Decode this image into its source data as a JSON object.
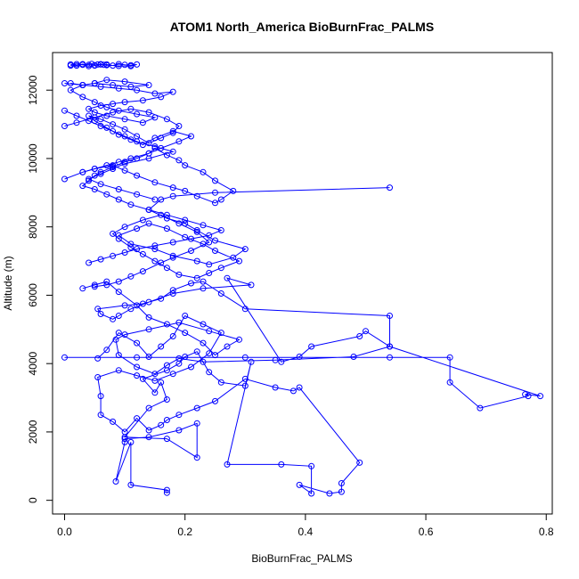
{
  "chart_data": {
    "type": "line",
    "title": "ATOM1 North_America BioBurnFrac_PALMS",
    "xlabel": "BioBurnFrac_PALMS",
    "ylabel": "Altitude (m)",
    "xlim": [
      -0.02,
      0.81
    ],
    "ylim": [
      -400,
      13100
    ],
    "xticks": [
      0.0,
      0.2,
      0.4,
      0.6,
      0.8
    ],
    "xtick_labels": [
      "0.0",
      "0.2",
      "0.4",
      "0.6",
      "0.8"
    ],
    "yticks": [
      0,
      2000,
      4000,
      6000,
      8000,
      10000,
      12000
    ],
    "ytick_labels": [
      "0",
      "2000",
      "4000",
      "6000",
      "8000",
      "10000",
      "12000"
    ],
    "grid": false,
    "marker": "open-circle",
    "color": "#0000ff",
    "series": [
      {
        "x": [
          0.17,
          0.17,
          0.11,
          0.11,
          0.085,
          0.1,
          0.1,
          0.14,
          0.19,
          0.22,
          0.22,
          0.17,
          0.1,
          0.14,
          0.17,
          0.16,
          0.15,
          0.13,
          0.17,
          0.19,
          0.2,
          0.22,
          0.24,
          0.26,
          0.3,
          0.31,
          0.27,
          0.36,
          0.41,
          0.41,
          0.39,
          0.44,
          0.46,
          0.46,
          0.49,
          0.39,
          0.38,
          0.35,
          0.3,
          0.25,
          0.22,
          0.19,
          0.17,
          0.16,
          0.14,
          0.12,
          0.1,
          0.08,
          0.06,
          0.06,
          0.055,
          0.09,
          0.12,
          0.15,
          0.18,
          0.21,
          0.24,
          0.26,
          0.23,
          0.2,
          0.18,
          0.16,
          0.14,
          0.12,
          0.09,
          0.07,
          0.055
        ],
        "y": [
          220,
          300,
          450,
          1700,
          550,
          1700,
          1800,
          1850,
          2050,
          2250,
          1250,
          1800,
          1850,
          2700,
          2950,
          3450,
          3150,
          3550,
          3800,
          4000,
          4200,
          4350,
          3750,
          3450,
          3350,
          4050,
          1050,
          1050,
          1000,
          200,
          450,
          200,
          250,
          500,
          1100,
          3300,
          3200,
          3300,
          3550,
          2900,
          2700,
          2500,
          2350,
          2200,
          2050,
          2400,
          2000,
          2300,
          2500,
          3050,
          3600,
          3800,
          3650,
          3500,
          3700,
          3900,
          4300,
          4900,
          5150,
          5400,
          4800,
          4500,
          4200,
          4600,
          4900,
          4400,
          4150
        ]
      },
      {
        "x": [
          0.0,
          0.12,
          0.3,
          0.54,
          0.64,
          0.64,
          0.69,
          0.77,
          0.765,
          0.79,
          0.54,
          0.5,
          0.49,
          0.41,
          0.39,
          0.36,
          0.27,
          0.31,
          0.23,
          0.18,
          0.14,
          0.11,
          0.09,
          0.08,
          0.06,
          0.055,
          0.1,
          0.13,
          0.16,
          0.18,
          0.21,
          0.23,
          0.26,
          0.3,
          0.54,
          0.54,
          0.48,
          0.35,
          0.23,
          0.19,
          0.17,
          0.15,
          0.12,
          0.09,
          0.085,
          0.1,
          0.14,
          0.19,
          0.24,
          0.29,
          0.27,
          0.25,
          0.23,
          0.2,
          0.17,
          0.14,
          0.12,
          0.09,
          0.07,
          0.05,
          0.03
        ],
        "y": [
          4180,
          4180,
          4180,
          4180,
          4180,
          3450,
          2700,
          3050,
          3100,
          3050,
          4500,
          4950,
          4800,
          4500,
          4200,
          4050,
          6500,
          6300,
          6200,
          6050,
          5800,
          5600,
          5400,
          5300,
          5450,
          5600,
          5700,
          5750,
          5900,
          6150,
          6350,
          6400,
          6050,
          5600,
          5400,
          4500,
          4200,
          4100,
          4050,
          4150,
          3950,
          3700,
          3900,
          4250,
          4700,
          4850,
          5000,
          5200,
          4950,
          4700,
          4500,
          4250,
          4600,
          4900,
          5150,
          5350,
          5700,
          6100,
          6400,
          6300,
          6200
        ]
      },
      {
        "x": [
          0.54,
          0.25,
          0.18,
          0.16,
          0.14,
          0.17,
          0.2,
          0.22,
          0.25,
          0.3,
          0.28,
          0.24,
          0.22,
          0.18,
          0.15,
          0.11,
          0.09,
          0.12,
          0.14,
          0.17,
          0.2,
          0.23,
          0.25,
          0.29,
          0.26,
          0.24,
          0.22,
          0.19,
          0.17,
          0.15,
          0.13,
          0.11,
          0.09,
          0.08,
          0.1,
          0.13,
          0.16,
          0.19,
          0.22,
          0.24,
          0.21,
          0.18,
          0.16,
          0.13,
          0.11,
          0.09,
          0.07,
          0.05
        ],
        "y": [
          9150,
          9000,
          8900,
          8800,
          8500,
          8250,
          8100,
          7900,
          7600,
          7350,
          7100,
          6900,
          7000,
          7150,
          7350,
          7500,
          7750,
          7950,
          8100,
          7950,
          7700,
          7500,
          7300,
          7000,
          6800,
          6650,
          6500,
          6600,
          6800,
          7000,
          7200,
          7400,
          7650,
          7800,
          8000,
          8200,
          8350,
          8100,
          7850,
          7550,
          7300,
          7100,
          6950,
          6700,
          6550,
          6400,
          6300,
          6250
        ]
      },
      {
        "x": [
          0.0,
          0.03,
          0.05,
          0.08,
          0.1,
          0.12,
          0.15,
          0.18,
          0.2,
          0.22,
          0.25,
          0.26,
          0.28,
          0.25,
          0.23,
          0.2,
          0.19,
          0.17,
          0.15,
          0.14,
          0.12,
          0.1,
          0.08,
          0.06,
          0.05,
          0.04,
          0.03,
          0.05,
          0.07,
          0.09,
          0.11,
          0.14,
          0.17,
          0.2,
          0.23,
          0.26,
          0.24,
          0.21,
          0.18,
          0.15,
          0.12,
          0.1,
          0.08,
          0.06,
          0.04
        ],
        "y": [
          9400,
          9600,
          9700,
          9800,
          9650,
          9500,
          9300,
          9150,
          9050,
          8900,
          8700,
          8800,
          9050,
          9350,
          9600,
          9800,
          9950,
          10100,
          10300,
          10150,
          10000,
          9900,
          9750,
          9600,
          9500,
          9350,
          9200,
          9100,
          8950,
          8800,
          8650,
          8500,
          8350,
          8200,
          8050,
          7900,
          7750,
          7650,
          7550,
          7450,
          7350,
          7250,
          7150,
          7050,
          6950
        ]
      },
      {
        "x": [
          0.0,
          0.02,
          0.05,
          0.08,
          0.11,
          0.14,
          0.17,
          0.19,
          0.18,
          0.16,
          0.14,
          0.12,
          0.1,
          0.08,
          0.06,
          0.04,
          0.05,
          0.07,
          0.09,
          0.11,
          0.13,
          0.15,
          0.18,
          0.21,
          0.19,
          0.16,
          0.14,
          0.11,
          0.09,
          0.07,
          0.05,
          0.03
        ],
        "y": [
          10950,
          11050,
          11200,
          11350,
          11450,
          11350,
          11150,
          10950,
          10750,
          10600,
          10450,
          10650,
          10850,
          11000,
          11150,
          11250,
          11100,
          10900,
          10700,
          10550,
          10400,
          10600,
          10800,
          10650,
          10500,
          10300,
          10150,
          10000,
          9900,
          9800,
          9700,
          9600
        ]
      },
      {
        "x": [
          0.0,
          0.03,
          0.06,
          0.09,
          0.12,
          0.15,
          0.18,
          0.16,
          0.13,
          0.1,
          0.08,
          0.06,
          0.04,
          0.05,
          0.07,
          0.1,
          0.13,
          0.15,
          0.12,
          0.09,
          0.07,
          0.05,
          0.03,
          0.01,
          0.03,
          0.05,
          0.08,
          0.11,
          0.14,
          0.1,
          0.07,
          0.05,
          0.03,
          0.01
        ],
        "y": [
          12200,
          12150,
          12100,
          12050,
          12000,
          11900,
          11950,
          11800,
          11700,
          11650,
          11600,
          11550,
          11450,
          11350,
          11250,
          11150,
          11050,
          11200,
          11300,
          11400,
          11500,
          11650,
          11800,
          12000,
          12150,
          12200,
          12150,
          12100,
          12150,
          12250,
          12300,
          12200,
          12150,
          12200
        ]
      },
      {
        "x": [
          0.01,
          0.02,
          0.03,
          0.04,
          0.045,
          0.05,
          0.055,
          0.06,
          0.065,
          0.07,
          0.08,
          0.09,
          0.1,
          0.11,
          0.12,
          0.11,
          0.09,
          0.07,
          0.06,
          0.05,
          0.04,
          0.03,
          0.02,
          0.01
        ],
        "y": [
          12750,
          12720,
          12760,
          12740,
          12770,
          12730,
          12750,
          12760,
          12740,
          12750,
          12720,
          12760,
          12740,
          12730,
          12750,
          12700,
          12710,
          12730,
          12750,
          12720,
          12700,
          12740,
          12760,
          12720
        ]
      },
      {
        "x": [
          0.0,
          0.02,
          0.04,
          0.06,
          0.08,
          0.1,
          0.12,
          0.15,
          0.18,
          0.14,
          0.1,
          0.08,
          0.06,
          0.04,
          0.06,
          0.09,
          0.12,
          0.15
        ],
        "y": [
          11400,
          11250,
          11100,
          10950,
          10800,
          10650,
          10500,
          10350,
          10200,
          10000,
          9850,
          9700,
          9550,
          9400,
          9250,
          9100,
          8950,
          8800
        ]
      }
    ]
  }
}
